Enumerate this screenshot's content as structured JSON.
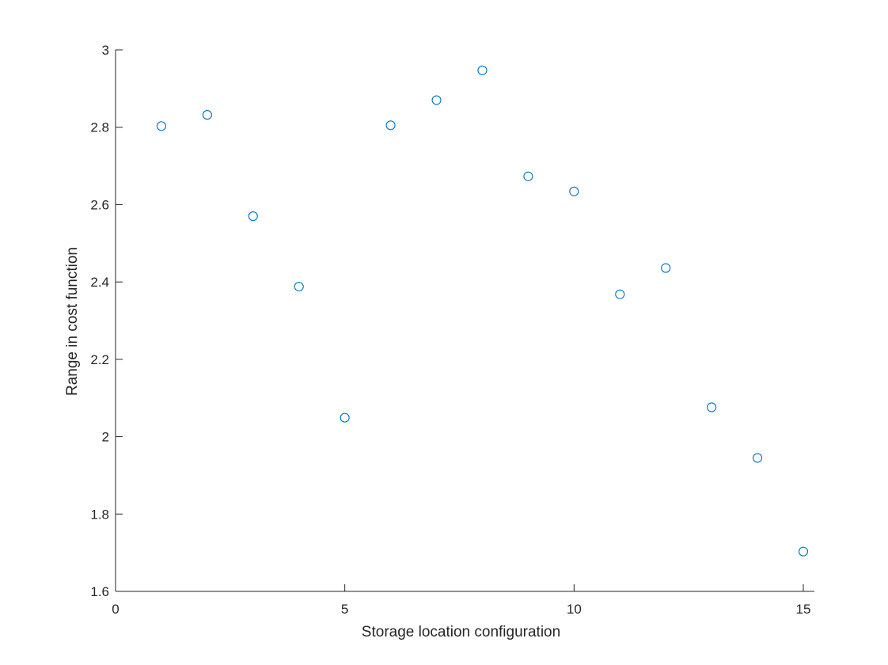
{
  "chart_data": {
    "type": "scatter",
    "title": "",
    "xlabel": "Storage location configuration",
    "ylabel": "Range in cost function",
    "xlim": [
      0,
      15
    ],
    "ylim": [
      1.6,
      3
    ],
    "xticks": [
      0,
      5,
      10,
      15
    ],
    "yticks": [
      1.6,
      1.8,
      2,
      2.2,
      2.4,
      2.6,
      2.8,
      3
    ],
    "xtick_labels": [
      "0",
      "5",
      "10",
      "15"
    ],
    "ytick_labels": [
      "1.6",
      "1.8",
      "2",
      "2.2",
      "2.4",
      "2.6",
      "2.8",
      "3"
    ],
    "grid": false,
    "marker": "open-circle",
    "color": "#0072BD",
    "x": [
      1,
      2,
      3,
      4,
      5,
      6,
      7,
      8,
      9,
      10,
      11,
      12,
      13,
      14,
      15
    ],
    "y": [
      2.803,
      2.832,
      2.57,
      2.388,
      2.049,
      2.805,
      2.87,
      2.947,
      2.673,
      2.634,
      2.368,
      2.436,
      2.076,
      1.945,
      1.703
    ]
  }
}
